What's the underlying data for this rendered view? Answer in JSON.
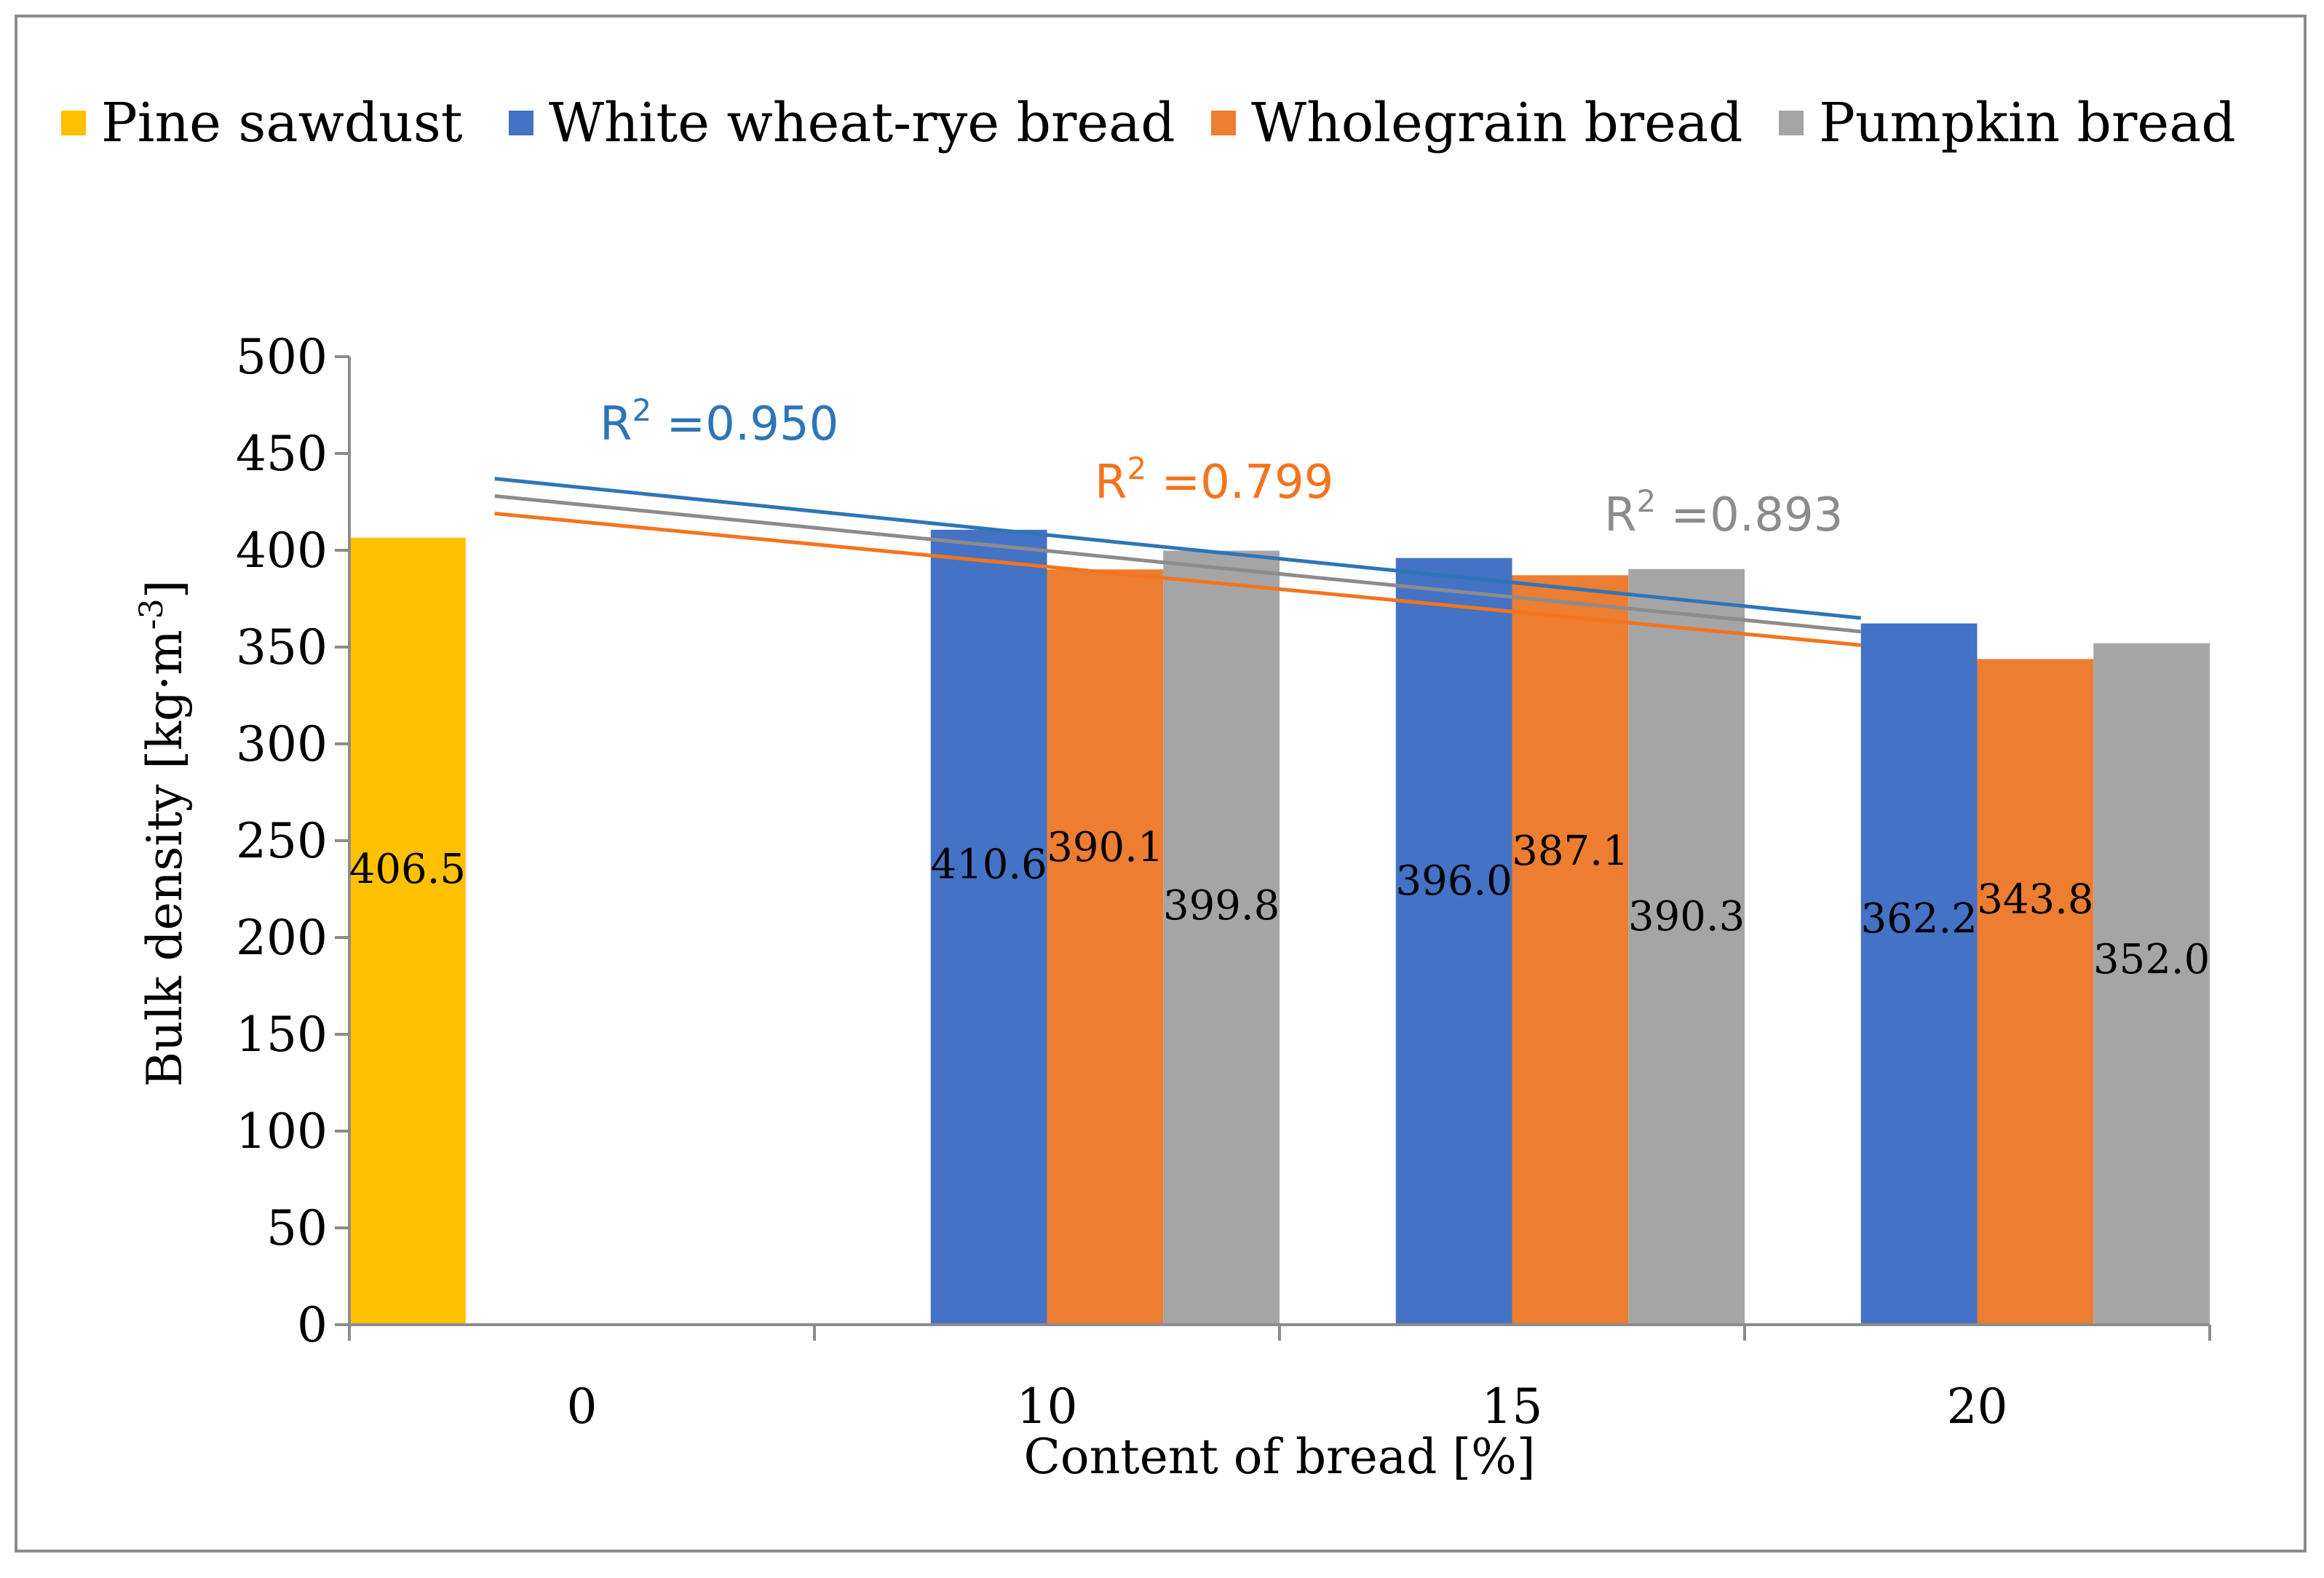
{
  "chart_data": {
    "type": "bar",
    "xlabel": "Content of bread  [%]",
    "ylabel": "Bulk density  [kg·m",
    "ylabel_sup": "-3",
    "ylabel_close": "]",
    "ylim": [
      0,
      500
    ],
    "yticks": [
      0,
      50,
      100,
      150,
      200,
      250,
      300,
      350,
      400,
      450,
      500
    ],
    "categories": [
      "0",
      "10",
      "15",
      "20"
    ],
    "legend_position": "top",
    "series": [
      {
        "name": "Pine sawdust",
        "color": "#FFC000",
        "values": [
          406.5,
          null,
          null,
          null
        ],
        "labels": [
          "406.5",
          "",
          "",
          ""
        ]
      },
      {
        "name": "White wheat-rye bread",
        "color": "#4472C4",
        "values": [
          null,
          410.6,
          396.0,
          362.2
        ],
        "labels": [
          "",
          "410.6",
          "396.0",
          "362.2"
        ]
      },
      {
        "name": "Wholegrain bread",
        "color": "#ED7D31",
        "values": [
          null,
          390.1,
          387.1,
          343.8
        ],
        "labels": [
          "",
          "390.1",
          "387.1",
          "343.8"
        ]
      },
      {
        "name": "Pumpkin bread",
        "color": "#A5A5A5",
        "values": [
          null,
          399.8,
          390.3,
          352.0
        ],
        "labels": [
          "",
          "399.8",
          "390.3",
          "352.0"
        ]
      }
    ],
    "trendlines": [
      {
        "series": "White wheat-rye bread",
        "color": "#2E75B6",
        "start": 437,
        "end": 365,
        "r2_prefix": "R",
        "r2_sup": "2",
        "r2_value": " =0.950"
      },
      {
        "series": "Wholegrain bread",
        "color": "#F4741E",
        "start": 419,
        "end": 351,
        "r2_prefix": "R",
        "r2_sup": "2",
        "r2_value": " =0.799"
      },
      {
        "series": "Pumpkin bread",
        "color": "#8C8C8C",
        "start": 428,
        "end": 358,
        "r2_prefix": "R",
        "r2_sup": "2",
        "r2_value": " =0.893"
      }
    ],
    "grid": false
  }
}
